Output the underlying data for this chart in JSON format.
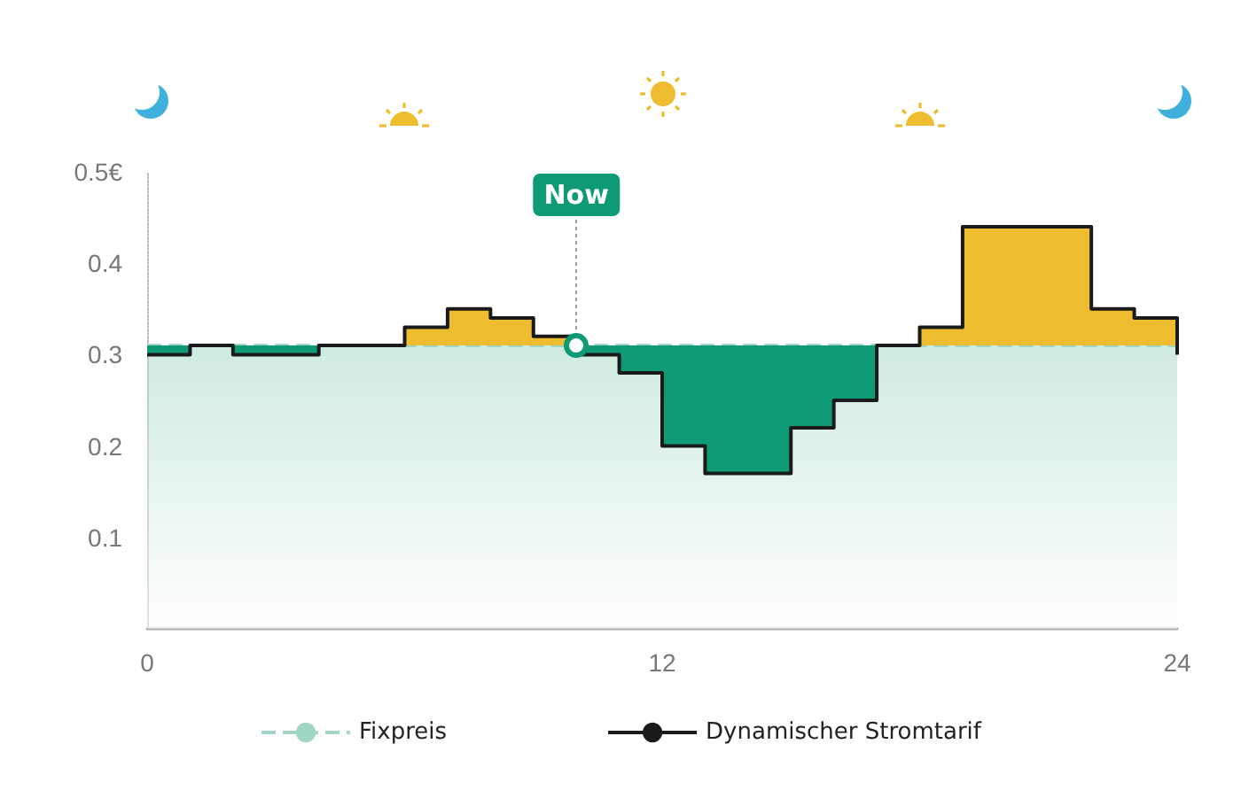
{
  "chart_data": {
    "type": "step",
    "x": [
      0,
      1,
      2,
      3,
      4,
      5,
      6,
      7,
      8,
      9,
      10,
      11,
      12,
      13,
      14,
      15,
      16,
      17,
      18,
      19,
      20,
      21,
      22,
      23,
      24
    ],
    "series": [
      {
        "name": "Fixpreis",
        "type": "area",
        "color": "#9fd6c4",
        "line_style": "dashed",
        "x": [
          0,
          24
        ],
        "values": [
          0.31,
          0.31
        ]
      },
      {
        "name": "Dynamischer Stromtarif",
        "color": "#1a1a1a",
        "line_style": "solid",
        "values": [
          0.3,
          0.31,
          0.3,
          0.3,
          0.31,
          0.31,
          0.33,
          0.35,
          0.34,
          0.32,
          0.3,
          0.28,
          0.2,
          0.17,
          0.17,
          0.22,
          0.25,
          0.31,
          0.33,
          0.44,
          0.44,
          0.44,
          0.35,
          0.34,
          0.3
        ]
      }
    ],
    "xlim": [
      0,
      24
    ],
    "xticks": [
      0,
      12,
      24
    ],
    "ylim": [
      0,
      0.5
    ],
    "yticks": [
      {
        "value": 0.1,
        "label": "0.1"
      },
      {
        "value": 0.2,
        "label": "0.2"
      },
      {
        "value": 0.3,
        "label": "0.3"
      },
      {
        "value": 0.4,
        "label": "0.4"
      },
      {
        "value": 0.5,
        "label": "0.5€"
      }
    ],
    "annotations": [
      {
        "text": "Now",
        "x": 10,
        "y": 0.31
      }
    ],
    "grid": false,
    "legend": "bottom",
    "marker": "none"
  }
}
